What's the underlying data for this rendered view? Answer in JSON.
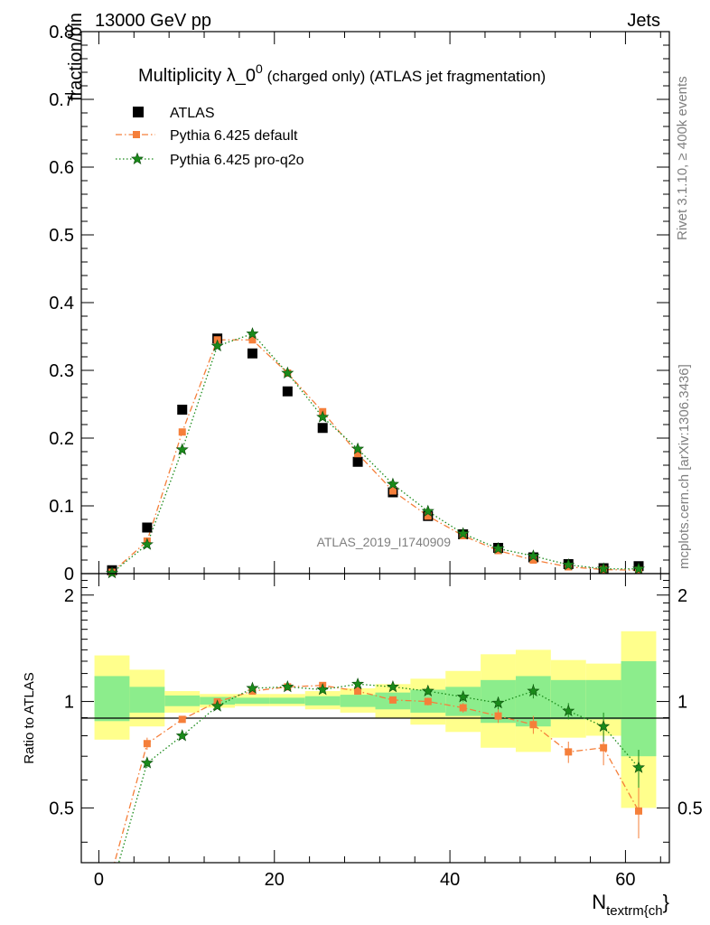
{
  "header": {
    "left": "13000 GeV pp",
    "right": "Jets"
  },
  "side_text": {
    "rivet": "Rivet 3.1.10, ≥ 400k events",
    "mcplots": "mcplots.cern.ch [arXiv:1306.3436]"
  },
  "analysis_id": "ATLAS_2019_I1740909",
  "chart_data": [
    {
      "type": "scatter",
      "panel": "main",
      "title_main": "Multiplicity λ_0",
      "title_sup": "0",
      "title_rest": " (charged only) (ATLAS jet fragmentation)",
      "ylabel": "fraction/bin",
      "xlim": [
        -2,
        65
      ],
      "ylim": [
        0,
        0.8
      ],
      "yticks": [
        0,
        0.1,
        0.2,
        0.3,
        0.4,
        0.5,
        0.6,
        0.7,
        0.8
      ],
      "ytick_labels": [
        "0",
        "0.1",
        "0.2",
        "0.3",
        "0.4",
        "0.5",
        "0.6",
        "0.7",
        "0.8"
      ],
      "legend_position": "top-left",
      "x": [
        1.5,
        5.5,
        9.5,
        13.5,
        17.5,
        21.5,
        25.5,
        29.5,
        33.5,
        37.5,
        41.5,
        45.5,
        49.5,
        53.5,
        57.5,
        61.5
      ],
      "series": [
        {
          "name": "ATLAS",
          "color": "#000000",
          "marker": "square",
          "values": [
            0.005,
            0.068,
            0.242,
            0.347,
            0.325,
            0.269,
            0.215,
            0.165,
            0.12,
            0.085,
            0.058,
            0.038,
            0.024,
            0.014,
            0.008,
            0.011
          ]
        },
        {
          "name": "Pythia 6.425 default",
          "color": "#f57f3a",
          "marker": "square-small",
          "line": "dashdot",
          "values": [
            0.002,
            0.048,
            0.209,
            0.345,
            0.345,
            0.296,
            0.239,
            0.177,
            0.122,
            0.085,
            0.056,
            0.034,
            0.02,
            0.01,
            0.006,
            0.005
          ]
        },
        {
          "name": "Pythia 6.425 pro-q2o",
          "color": "#1a8a1a",
          "marker": "star",
          "line": "dotted",
          "values": [
            0.001,
            0.043,
            0.183,
            0.336,
            0.354,
            0.296,
            0.231,
            0.184,
            0.132,
            0.092,
            0.059,
            0.037,
            0.026,
            0.013,
            0.007,
            0.007
          ]
        }
      ]
    },
    {
      "type": "scatter",
      "panel": "ratio",
      "ylabel": "Ratio to ATLAS",
      "xlabel_main": "N",
      "xlabel_sub": "textrm{ch",
      "xlabel_close": "}",
      "xlim": [
        -2,
        65
      ],
      "ylim": [
        0.35,
        2.3
      ],
      "yticks": [
        0.5,
        1,
        2
      ],
      "ytick_labels": [
        "0.5",
        "1",
        "2"
      ],
      "xticks": [
        0,
        20,
        40,
        60
      ],
      "xtick_labels": [
        "0",
        "20",
        "40",
        "60"
      ],
      "bin_edges": [
        -0.5,
        3.5,
        7.5,
        11.5,
        15.5,
        19.5,
        23.5,
        27.5,
        31.5,
        35.5,
        39.5,
        43.5,
        47.5,
        51.5,
        55.5,
        59.5,
        63.5
      ],
      "band_yellow": {
        "color": "#ffff8c",
        "lower": [
          0.78,
          0.85,
          0.93,
          0.96,
          0.97,
          0.97,
          0.95,
          0.93,
          0.9,
          0.86,
          0.82,
          0.74,
          0.72,
          0.79,
          0.8,
          0.5
        ],
        "upper": [
          1.35,
          1.23,
          1.07,
          1.05,
          1.05,
          1.05,
          1.07,
          1.09,
          1.12,
          1.16,
          1.22,
          1.36,
          1.4,
          1.31,
          1.28,
          1.58
        ]
      },
      "band_green": {
        "color": "#8ced8c",
        "lower": [
          0.88,
          0.93,
          0.97,
          0.98,
          0.985,
          0.985,
          0.975,
          0.965,
          0.95,
          0.93,
          0.91,
          0.87,
          0.85,
          0.89,
          0.89,
          0.7
        ],
        "upper": [
          1.18,
          1.1,
          1.04,
          1.03,
          1.025,
          1.025,
          1.035,
          1.045,
          1.06,
          1.08,
          1.1,
          1.15,
          1.18,
          1.15,
          1.15,
          1.3
        ]
      },
      "x": [
        1.5,
        5.5,
        9.5,
        13.5,
        17.5,
        21.5,
        25.5,
        29.5,
        33.5,
        37.5,
        41.5,
        45.5,
        49.5,
        53.5,
        57.5,
        61.5
      ],
      "series": [
        {
          "name": "Pythia 6.425 default",
          "color": "#f57f3a",
          "values": [
            0.33,
            0.76,
            0.89,
            0.998,
            1.07,
            1.1,
            1.11,
            1.07,
            1.01,
            1.0,
            0.96,
            0.91,
            0.86,
            0.72,
            0.74,
            0.49
          ],
          "err": [
            0,
            0.03,
            0.01,
            0.01,
            0.01,
            0.01,
            0.01,
            0.015,
            0.02,
            0.025,
            0.03,
            0.04,
            0.05,
            0.05,
            0.08,
            0.08
          ]
        },
        {
          "name": "Pythia 6.425 pro-q2o",
          "color": "#1a8a1a",
          "values": [
            0.3,
            0.67,
            0.8,
            0.97,
            1.09,
            1.1,
            1.08,
            1.12,
            1.1,
            1.07,
            1.03,
            0.99,
            1.07,
            0.94,
            0.85,
            0.65
          ],
          "err": [
            0,
            0.02,
            0.01,
            0.01,
            0.01,
            0.01,
            0.01,
            0.015,
            0.02,
            0.025,
            0.03,
            0.04,
            0.05,
            0.05,
            0.08,
            0.08
          ]
        }
      ]
    }
  ]
}
